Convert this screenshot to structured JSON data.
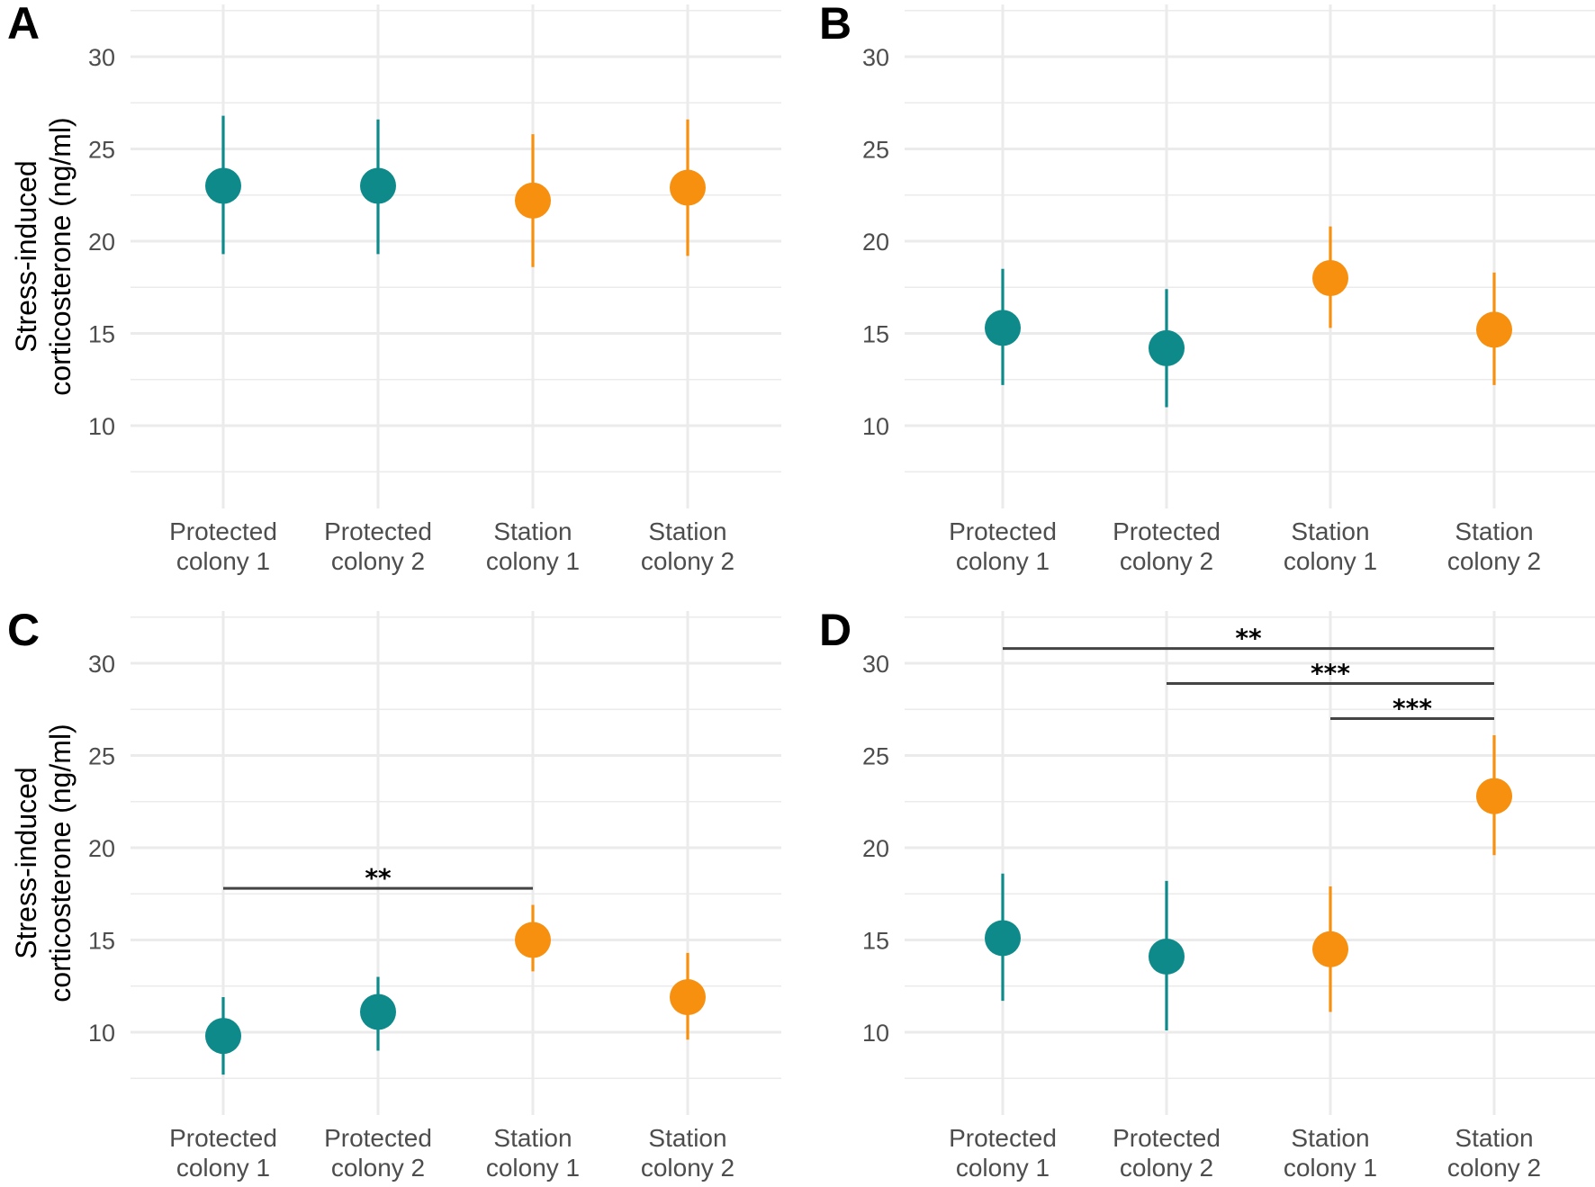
{
  "figure": {
    "ylabel_lines": [
      "Stress-induced",
      "corticosterone (ng/ml)"
    ],
    "categories": [
      [
        "Protected",
        "colony 1"
      ],
      [
        "Protected",
        "colony 2"
      ],
      [
        "Station",
        "colony 1"
      ],
      [
        "Station",
        "colony 2"
      ]
    ],
    "colors": {
      "protected": "#0e8a8a",
      "station": "#f78f0f",
      "grid": "#ebebeb",
      "bracket": "#444444"
    }
  },
  "chart_data": [
    {
      "panel": "A",
      "type": "scatter",
      "ylabel": "Stress-induced corticosterone (ng/ml)",
      "ylim": [
        5.5,
        32.5
      ],
      "yticks": [
        10,
        15,
        20,
        25,
        30
      ],
      "groups": [
        "protected",
        "protected",
        "station",
        "station"
      ],
      "means": [
        23.0,
        23.0,
        22.2,
        22.9
      ],
      "lower": [
        19.3,
        19.3,
        18.6,
        19.2
      ],
      "upper": [
        26.8,
        26.6,
        25.8,
        26.6
      ],
      "brackets": []
    },
    {
      "panel": "B",
      "type": "scatter",
      "ylabel": "",
      "ylim": [
        5.5,
        32.5
      ],
      "yticks": [
        10,
        15,
        20,
        25,
        30
      ],
      "groups": [
        "protected",
        "protected",
        "station",
        "station"
      ],
      "means": [
        15.3,
        14.2,
        18.0,
        15.2
      ],
      "lower": [
        12.2,
        11.0,
        15.3,
        12.2
      ],
      "upper": [
        18.5,
        17.4,
        20.8,
        18.3
      ],
      "brackets": []
    },
    {
      "panel": "C",
      "type": "scatter",
      "ylabel": "Stress-induced corticosterone (ng/ml)",
      "ylim": [
        5.5,
        32.5
      ],
      "yticks": [
        10,
        15,
        20,
        25,
        30
      ],
      "groups": [
        "protected",
        "protected",
        "station",
        "station"
      ],
      "means": [
        9.8,
        11.1,
        15.0,
        11.9
      ],
      "lower": [
        7.7,
        9.0,
        13.3,
        9.6
      ],
      "upper": [
        11.9,
        13.0,
        16.9,
        14.3
      ],
      "brackets": [
        {
          "from": 0,
          "to": 2,
          "y": 17.8,
          "label": "**"
        }
      ]
    },
    {
      "panel": "D",
      "type": "scatter",
      "ylabel": "",
      "ylim": [
        5.5,
        32.5
      ],
      "yticks": [
        10,
        15,
        20,
        25,
        30
      ],
      "groups": [
        "protected",
        "protected",
        "station",
        "station"
      ],
      "means": [
        15.1,
        14.1,
        14.5,
        22.8
      ],
      "lower": [
        11.7,
        10.1,
        11.1,
        19.6
      ],
      "upper": [
        18.6,
        18.2,
        17.9,
        26.1
      ],
      "brackets": [
        {
          "from": 0,
          "to": 3,
          "y": 30.8,
          "label": "**"
        },
        {
          "from": 1,
          "to": 3,
          "y": 28.9,
          "label": "***"
        },
        {
          "from": 2,
          "to": 3,
          "y": 27.0,
          "label": "***"
        }
      ]
    }
  ]
}
